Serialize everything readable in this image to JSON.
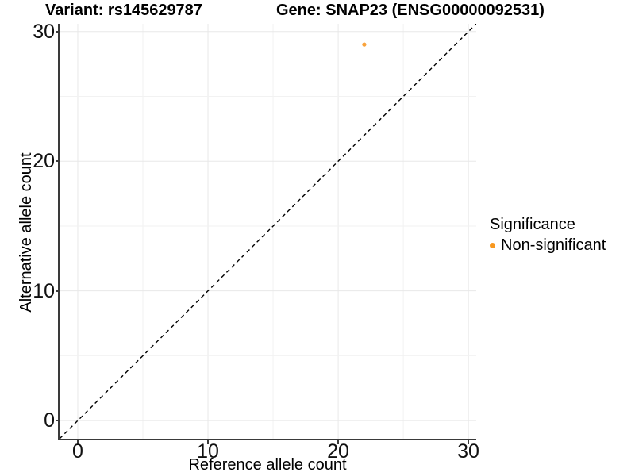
{
  "titles": {
    "variant": "Variant: rs145629787",
    "gene": "Gene: SNAP23 (ENSG00000092531)"
  },
  "axes": {
    "x": {
      "label": "Reference allele count",
      "tick_labels": [
        "0",
        "10",
        "20",
        "30"
      ]
    },
    "y": {
      "label": "Alternative allele count",
      "tick_labels": [
        "0",
        "10",
        "20",
        "30"
      ]
    }
  },
  "legend": {
    "title": "Significance",
    "items": [
      {
        "label": "Non-significant",
        "color": "#F8981F"
      }
    ]
  },
  "colors": {
    "point": "#F9A33C",
    "axis_line": "#3a3a3a",
    "grid_major": "#e8e8e8",
    "grid_minor": "#f2f2f2",
    "identity_line": "#000000",
    "background": "#ffffff"
  },
  "chart_data": {
    "type": "scatter",
    "title_left": "Variant: rs145629787",
    "title_right": "Gene: SNAP23 (ENSG00000092531)",
    "xlabel": "Reference allele count",
    "ylabel": "Alternative allele count",
    "xlim": [
      -1.4,
      30.6
    ],
    "ylim": [
      -1.4,
      30.6
    ],
    "x_ticks": [
      0,
      10,
      20,
      30
    ],
    "y_ticks": [
      0,
      10,
      20,
      30
    ],
    "x_grid": [
      0,
      5,
      10,
      15,
      20,
      25,
      30
    ],
    "y_grid": [
      0,
      5,
      10,
      15,
      20,
      25,
      30
    ],
    "grid": "on",
    "legend_position": "right",
    "series": [
      {
        "name": "Non-significant",
        "color": "#F9A33C",
        "points": [
          {
            "x": 22,
            "y": 29
          }
        ]
      }
    ],
    "reference_line": {
      "type": "identity y=x",
      "style": "dashed",
      "color": "#000000"
    }
  }
}
